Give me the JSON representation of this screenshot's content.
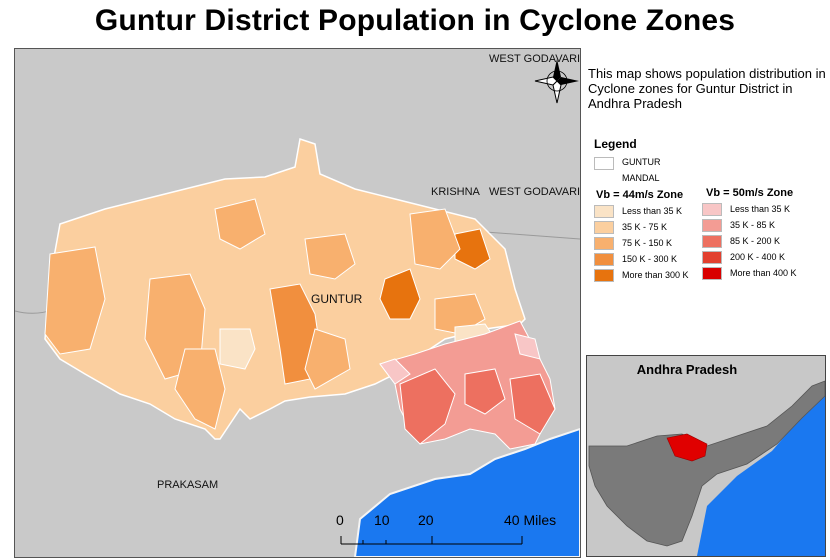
{
  "title": "Guntur District Population in Cyclone Zones",
  "description": "This map shows population distribution in Cyclone zones for Guntur District in Andhra Pradesh",
  "map_labels": {
    "west_godavari_top": "WEST GODAVARI",
    "krishna": "KRISHNA",
    "west_godavari_mid": "WEST GODAVARI",
    "guntur": "GUNTUR",
    "prakasam": "PRAKASAM"
  },
  "legend": {
    "title": "Legend",
    "mandal_label_1": "GUNTUR",
    "mandal_label_2": "MANDAL",
    "zone44": {
      "heading": "Vb = 44m/s Zone",
      "items": [
        {
          "label": "Less than 35 K",
          "color": "#fae3c6"
        },
        {
          "label": "35 K - 75 K",
          "color": "#fbcf9f"
        },
        {
          "label": "75 K - 150 K",
          "color": "#f8b06e"
        },
        {
          "label": "150 K - 300 K",
          "color": "#f18f3e"
        },
        {
          "label": "More than 300 K",
          "color": "#e7730e"
        }
      ]
    },
    "zone50": {
      "heading": "Vb = 50m/s Zone",
      "items": [
        {
          "label": "Less than 35 K",
          "color": "#f8c6c6"
        },
        {
          "label": "35 K - 85 K",
          "color": "#f39c94"
        },
        {
          "label": "85 K - 200 K",
          "color": "#ed7060"
        },
        {
          "label": "200 K - 400 K",
          "color": "#e2402f"
        },
        {
          "label": "More than 400 K",
          "color": "#d90000"
        }
      ]
    }
  },
  "inset": {
    "title": "Andhra Pradesh",
    "highlight_color": "#e00000"
  },
  "scale": {
    "ticks": [
      "0",
      "10",
      "20",
      "40 Miles"
    ]
  },
  "colors": {
    "land": "#c9c9c9",
    "sea": "#1a78f0",
    "district_base": "#fbcf9f"
  },
  "icons": [
    "north-arrow-icon"
  ]
}
